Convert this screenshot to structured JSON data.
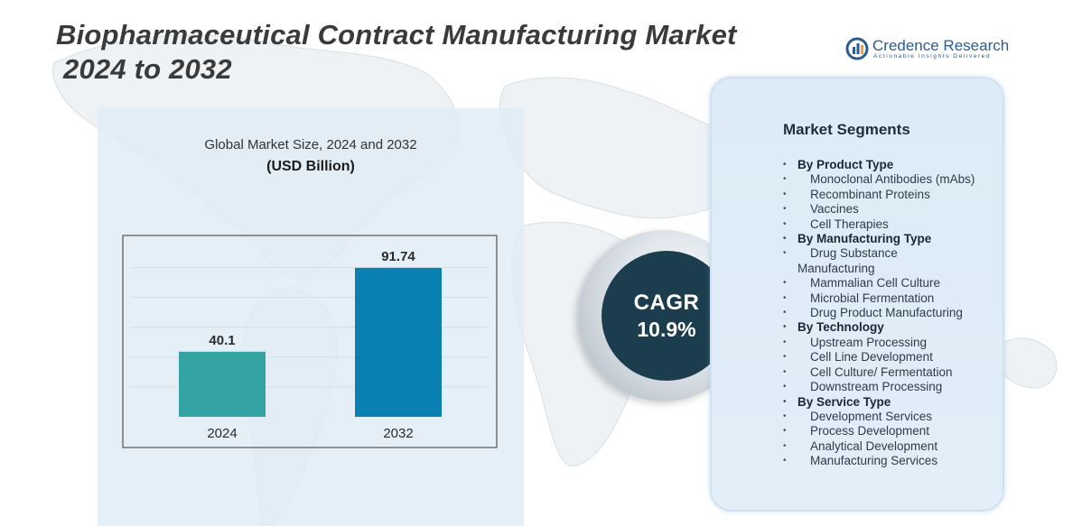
{
  "title": {
    "line1": "Biopharmaceutical Contract Manufacturing Market",
    "line2": "2024 to 2032"
  },
  "logo": {
    "name": "Credence Research",
    "tagline": "Actionable Insights Delivered"
  },
  "chart_data": {
    "type": "bar",
    "title": "Global Market Size, 2024 and 2032",
    "unit": "(USD Billion)",
    "categories": [
      "2024",
      "2032"
    ],
    "values": [
      40.1,
      91.74
    ],
    "value_labels": [
      "40.1",
      "91.74"
    ],
    "colors": [
      "#33a3a3",
      "#0a7fb2"
    ],
    "ylim": [
      0,
      100
    ],
    "xlabel": "",
    "ylabel": "",
    "grid": true
  },
  "cagr": {
    "label": "CAGR",
    "value": "10.9%"
  },
  "segments": {
    "title": "Market Segments",
    "groups": [
      {
        "heading": "By Product Type",
        "items": [
          "Monoclonal Antibodies (mAbs)",
          "Recombinant Proteins",
          "Vaccines",
          "Cell Therapies"
        ]
      },
      {
        "heading": "By Manufacturing Type",
        "items": [
          "Drug Substance",
          "Manufacturing",
          "Mammalian Cell Culture",
          "Microbial Fermentation",
          "Drug Product Manufacturing"
        ]
      },
      {
        "heading": "By Technology",
        "items": [
          "Upstream Processing",
          "Cell Line Development",
          "Cell Culture/ Fermentation",
          "Downstream Processing"
        ]
      },
      {
        "heading": "By Service Type",
        "items": [
          "Development Services",
          "Process Development",
          "Analytical Development",
          "Manufacturing Services"
        ]
      }
    ]
  }
}
